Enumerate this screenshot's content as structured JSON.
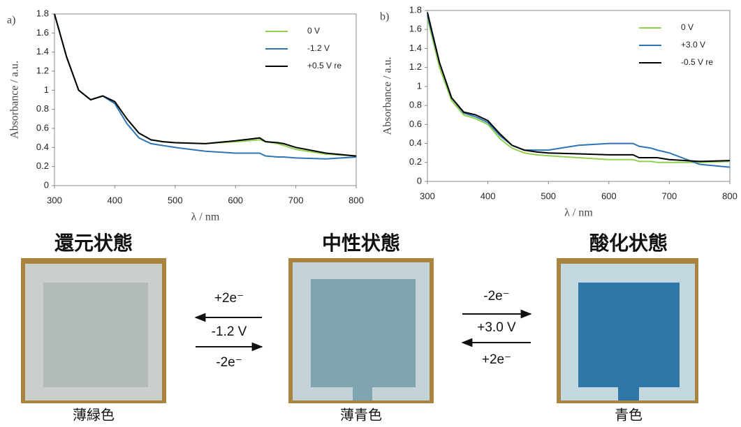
{
  "chart_data": [
    {
      "type": "line",
      "panel_label": "a)",
      "xlabel": "λ / nm",
      "ylabel": "Absorbance / a.u.",
      "x": [
        300,
        320,
        340,
        360,
        380,
        400,
        420,
        440,
        460,
        480,
        500,
        550,
        600,
        640,
        650,
        670,
        680,
        700,
        750,
        800
      ],
      "xlim": [
        300,
        800
      ],
      "xticks": [
        300,
        400,
        500,
        600,
        700,
        800
      ],
      "ylim": [
        0,
        1.8
      ],
      "yticks": [
        0,
        0.2,
        0.4,
        0.6,
        0.8,
        1,
        1.2,
        1.4,
        1.6,
        1.8
      ],
      "legend": "upper right",
      "series": [
        {
          "name": "0 V",
          "color": "#8fd14f",
          "values": [
            1.8,
            1.35,
            1.0,
            0.9,
            0.94,
            0.88,
            0.7,
            0.55,
            0.48,
            0.46,
            0.45,
            0.44,
            0.46,
            0.48,
            0.46,
            0.44,
            0.42,
            0.38,
            0.33,
            0.31
          ]
        },
        {
          "name": "-1.2 V",
          "color": "#2e75b6",
          "values": [
            1.8,
            1.35,
            1.0,
            0.9,
            0.94,
            0.86,
            0.65,
            0.5,
            0.44,
            0.42,
            0.4,
            0.36,
            0.34,
            0.34,
            0.31,
            0.3,
            0.3,
            0.29,
            0.28,
            0.3
          ]
        },
        {
          "name": "+0.5 V re",
          "color": "#000000",
          "values": [
            1.8,
            1.35,
            1.0,
            0.9,
            0.94,
            0.88,
            0.7,
            0.55,
            0.48,
            0.46,
            0.45,
            0.44,
            0.47,
            0.5,
            0.46,
            0.45,
            0.44,
            0.4,
            0.34,
            0.31
          ]
        }
      ]
    },
    {
      "type": "line",
      "panel_label": "b)",
      "xlabel": "λ / nm",
      "ylabel": "Absorbance / a.u.",
      "x": [
        300,
        320,
        340,
        360,
        380,
        400,
        420,
        440,
        460,
        480,
        500,
        550,
        600,
        640,
        650,
        670,
        680,
        700,
        750,
        800
      ],
      "xlim": [
        300,
        800
      ],
      "xticks": [
        300,
        400,
        500,
        600,
        700,
        800
      ],
      "ylim": [
        0,
        1.8
      ],
      "yticks": [
        0,
        0.2,
        0.4,
        0.6,
        0.8,
        1,
        1.2,
        1.4,
        1.6,
        1.8
      ],
      "legend": "upper right",
      "series": [
        {
          "name": "0 V",
          "color": "#8fd14f",
          "values": [
            1.72,
            1.2,
            0.85,
            0.7,
            0.66,
            0.6,
            0.45,
            0.35,
            0.3,
            0.28,
            0.27,
            0.25,
            0.23,
            0.23,
            0.21,
            0.21,
            0.2,
            0.2,
            0.2,
            0.21
          ]
        },
        {
          "name": "+3.0 V",
          "color": "#2e75b6",
          "values": [
            1.75,
            1.25,
            0.88,
            0.72,
            0.68,
            0.62,
            0.48,
            0.38,
            0.33,
            0.33,
            0.33,
            0.38,
            0.4,
            0.4,
            0.37,
            0.35,
            0.33,
            0.3,
            0.18,
            0.15
          ]
        },
        {
          "name": "-0.5 V re",
          "color": "#000000",
          "values": [
            1.78,
            1.25,
            0.88,
            0.73,
            0.7,
            0.64,
            0.5,
            0.38,
            0.33,
            0.31,
            0.3,
            0.29,
            0.28,
            0.28,
            0.25,
            0.25,
            0.25,
            0.23,
            0.21,
            0.22
          ]
        }
      ]
    }
  ],
  "states": [
    {
      "title": "還元状態",
      "caption": "薄緑色"
    },
    {
      "title": "中性状態",
      "caption": "薄青色"
    },
    {
      "title": "酸化状態",
      "caption": "青色"
    }
  ],
  "reactions": [
    {
      "top": "+2e⁻",
      "middle": "-1.2 V",
      "bottom": "-2e⁻"
    },
    {
      "top": "-2e⁻",
      "middle": "+3.0 V",
      "bottom": "+2e⁻"
    }
  ]
}
